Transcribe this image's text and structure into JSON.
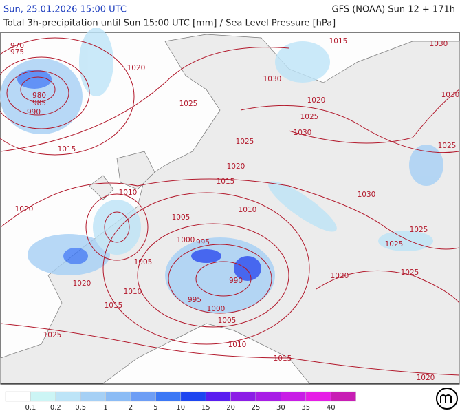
{
  "header": {
    "left": "Sun, 25.01.2026 15:00 UTC",
    "right": "GFS (NOAA) Sun 12 + 171h",
    "subtitle": "Total 3h-precipitation until Sun 15:00 UTC [mm] / Sea Level Pressure [hPa]"
  },
  "isobar_labels": [
    "970",
    "975",
    "1020",
    "980",
    "985",
    "990",
    "1015",
    "1025",
    "1030",
    "1015",
    "1030",
    "1020",
    "1025",
    "1030",
    "1030",
    "1025",
    "1025",
    "1020",
    "1015",
    "1010",
    "1030",
    "1020",
    "1010",
    "1005",
    "1025",
    "1025",
    "1000",
    "995",
    "1005",
    "1020",
    "990",
    "1025",
    "1020",
    "1010",
    "995",
    "1015",
    "1000",
    "1005",
    "1025",
    "1010",
    "1015",
    "1020"
  ],
  "legend": {
    "labels": [
      "0.1",
      "0.2",
      "0.5",
      "1",
      "2",
      "5",
      "10",
      "15",
      "20",
      "25",
      "30",
      "35",
      "40"
    ],
    "colors": [
      "#ffffff",
      "#ccf5f5",
      "#bde4f7",
      "#a6d0f5",
      "#8cbcf5",
      "#6e9ef5",
      "#3c78f5",
      "#1e46f0",
      "#5a1ef0",
      "#8c1ee6",
      "#a81ee6",
      "#c81ee6",
      "#e61ee6",
      "#c81eb4"
    ]
  },
  "isobar_color": "#b2182b",
  "land_color": "#ececec"
}
